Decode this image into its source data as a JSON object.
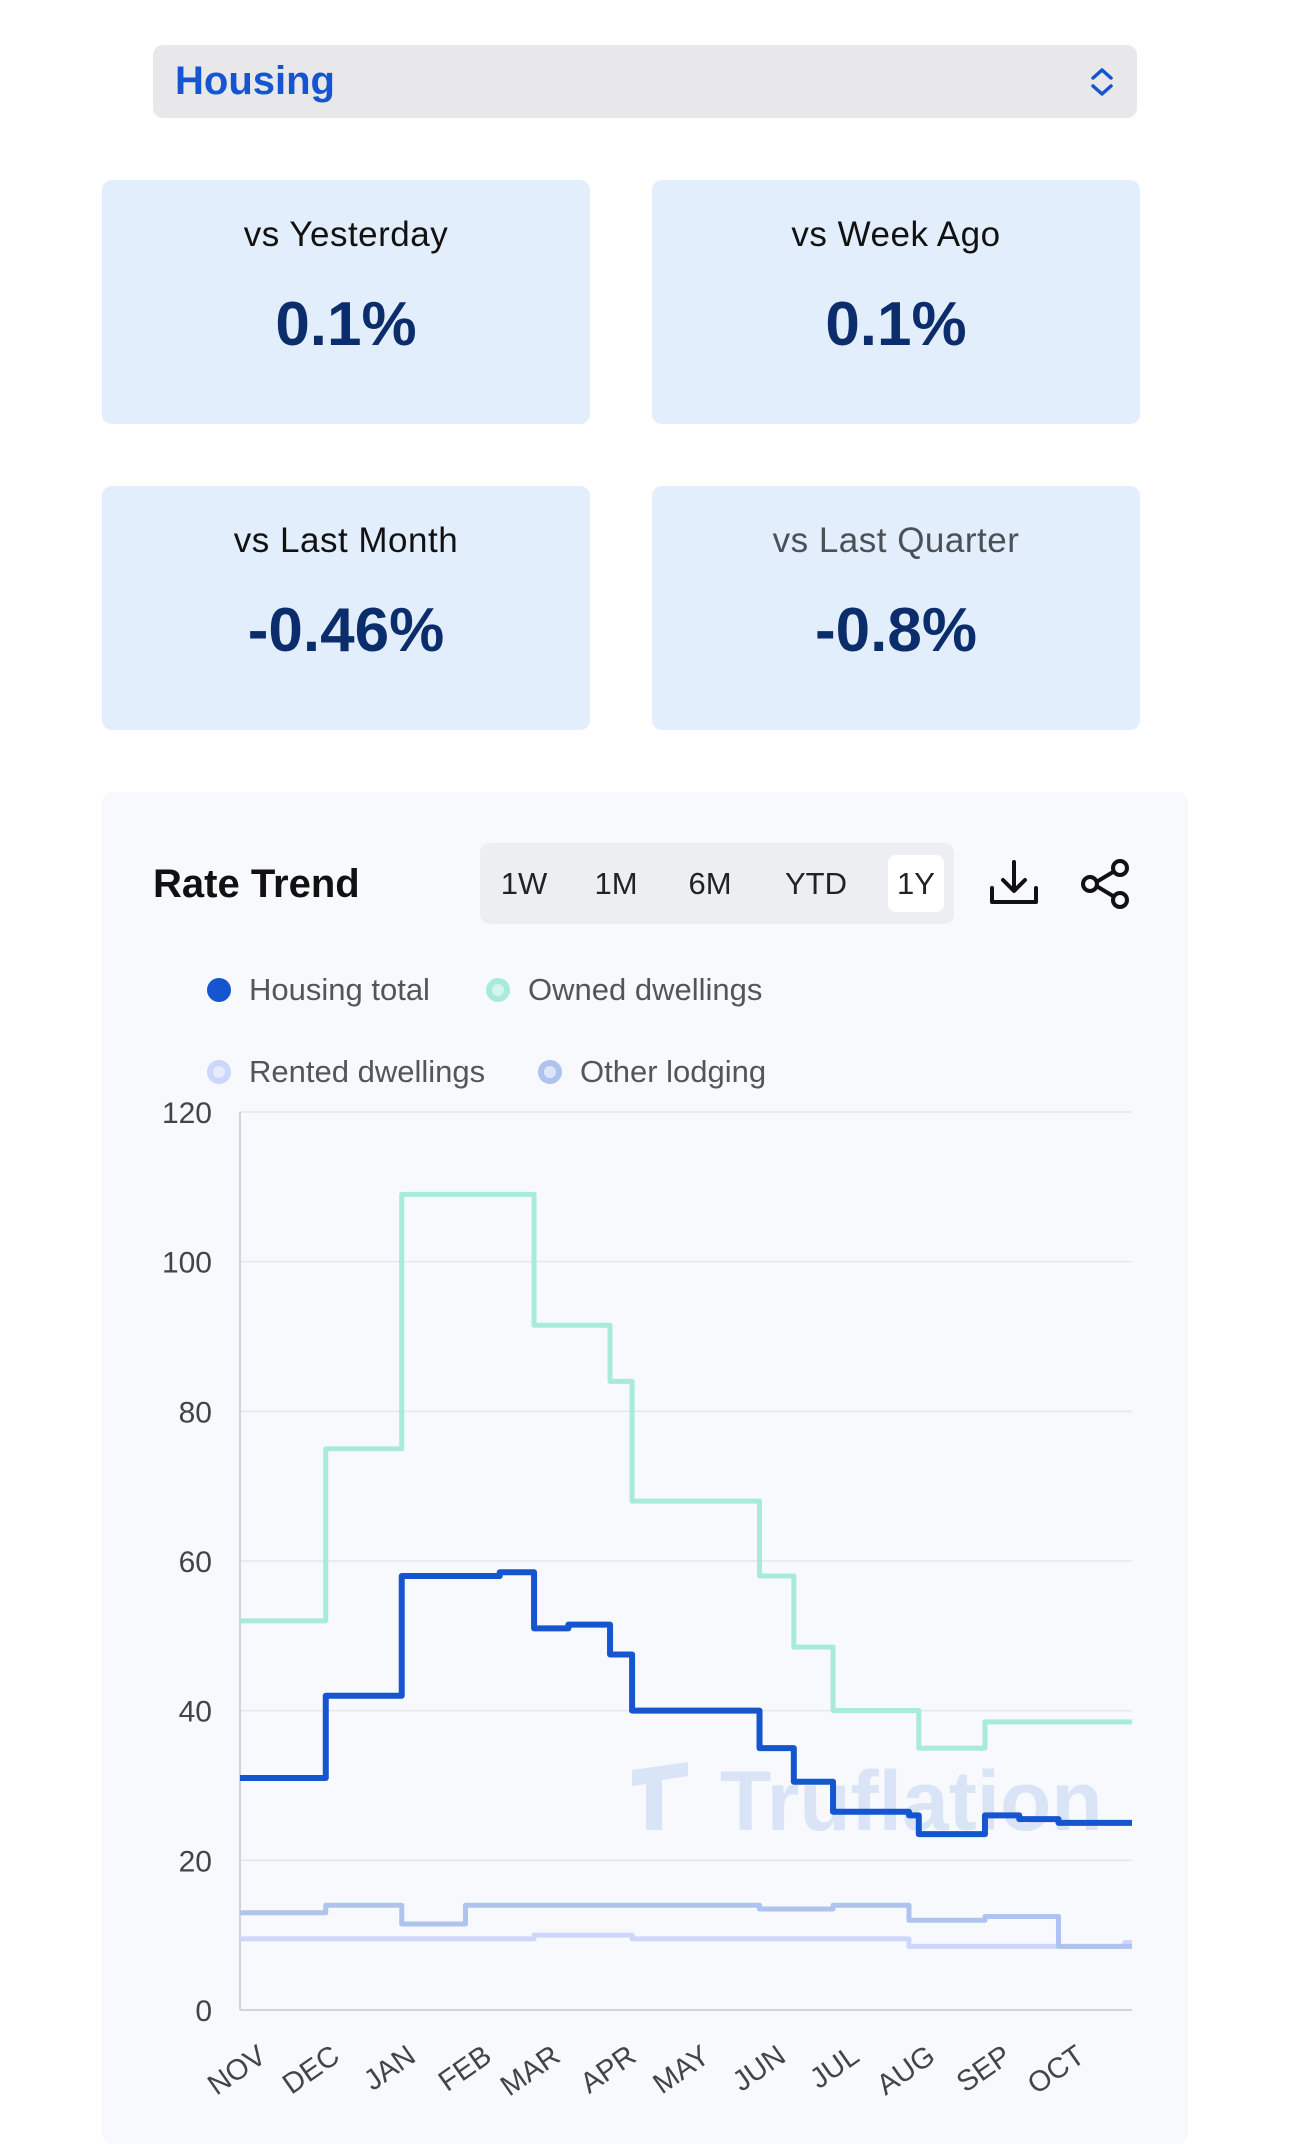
{
  "category_select": {
    "value": "Housing"
  },
  "cards": [
    {
      "label": "vs Yesterday",
      "value": "0.1%"
    },
    {
      "label": "vs Week Ago",
      "value": "0.1%"
    },
    {
      "label": "vs Last Month",
      "value": "-0.46%"
    },
    {
      "label": "vs Last Quarter",
      "value": "-0.8%"
    }
  ],
  "trend": {
    "title": "Rate Trend",
    "ranges": [
      "1W",
      "1M",
      "6M",
      "YTD",
      "1Y"
    ],
    "active_range": "1Y",
    "watermark": "Truflation"
  },
  "icons": {
    "download": "download-icon",
    "share": "share-icon",
    "select": "chevron-updown-icon"
  },
  "colors": {
    "accent": "#1556d0",
    "card_bg": "#e2eefc",
    "value_text": "#0c2d6b",
    "housing_total": "#1556d0",
    "owned_dwellings": "#a8eadb",
    "rented_dwellings": "#aec4ef",
    "other_lodging": "#cfd6fb"
  },
  "chart_data": {
    "type": "line",
    "step": true,
    "x": [
      "2022-11-01",
      "2022-12-01",
      "2022-12-06",
      "2023-01-01",
      "2023-01-06",
      "2023-02-01",
      "2023-02-15",
      "2023-03-01",
      "2023-03-15",
      "2023-04-01",
      "2023-04-10",
      "2023-05-01",
      "2023-05-20",
      "2023-06-01",
      "2023-06-05",
      "2023-06-15",
      "2023-07-01",
      "2023-07-15",
      "2023-08-01",
      "2023-08-05",
      "2023-08-20",
      "2023-09-01",
      "2023-09-15",
      "2023-10-01",
      "2023-10-10",
      "2023-10-28"
    ],
    "x_tick_labels": [
      "NOV",
      "DEC",
      "JAN",
      "FEB",
      "MAR",
      "APR",
      "MAY",
      "JUN",
      "JUL",
      "AUG",
      "SEP",
      "OCT"
    ],
    "ylim": [
      0,
      120
    ],
    "y_ticks": [
      0,
      20,
      40,
      60,
      80,
      100,
      120
    ],
    "grid": true,
    "legend_position": "top",
    "series": [
      {
        "name": "Housing total",
        "key": "housing_total",
        "values": [
          31,
          31,
          42,
          42,
          58,
          58,
          58.5,
          51,
          51.5,
          47.5,
          40,
          40,
          40,
          35,
          35,
          30.5,
          26.5,
          26.5,
          26,
          23.5,
          23.5,
          26,
          25.5,
          25,
          25,
          25
        ]
      },
      {
        "name": "Owned dwellings",
        "key": "owned_dwellings",
        "values": [
          52,
          52,
          75,
          75,
          109,
          109,
          109,
          91.5,
          91.5,
          84,
          68,
          68,
          68,
          58,
          58,
          48.5,
          40,
          40,
          40,
          35,
          35,
          38.5,
          38.5,
          38.5,
          38.5,
          38.5
        ]
      },
      {
        "name": "Rented dwellings",
        "key": "rented_dwellings",
        "values": [
          13,
          13,
          14,
          14,
          11.5,
          14,
          14,
          14,
          14,
          14,
          14,
          14,
          14,
          13.5,
          13.5,
          13.5,
          14,
          14,
          12,
          12,
          12,
          12.5,
          12.5,
          8.5,
          8.5,
          8.5
        ]
      },
      {
        "name": "Other lodging",
        "key": "other_lodging",
        "values": [
          9.5,
          9.5,
          9.5,
          9.5,
          9.5,
          9.5,
          9.5,
          10,
          10,
          10,
          9.5,
          9.5,
          9.5,
          9.5,
          9.5,
          9.5,
          9.5,
          9.5,
          8.5,
          8.5,
          8.5,
          8.5,
          8.5,
          8.5,
          8.5,
          9
        ]
      }
    ]
  }
}
